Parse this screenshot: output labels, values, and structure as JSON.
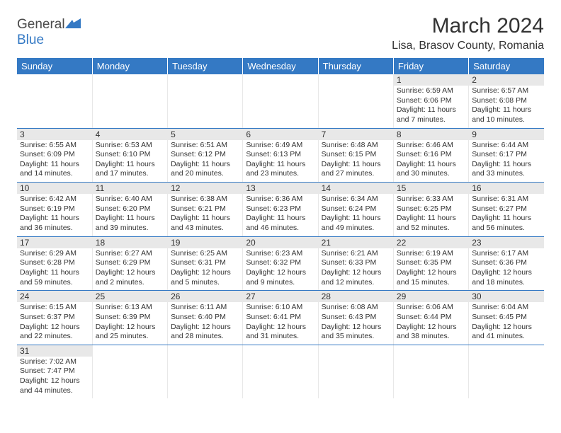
{
  "logo": {
    "text1": "General",
    "text2": "Blue"
  },
  "title": "March 2024",
  "location": "Lisa, Brasov County, Romania",
  "header_bg": "#3479c4",
  "header_fg": "#ffffff",
  "border_color": "#3479c4",
  "daynum_bg": "#e8e8e8",
  "days": [
    "Sunday",
    "Monday",
    "Tuesday",
    "Wednesday",
    "Thursday",
    "Friday",
    "Saturday"
  ],
  "weeks": [
    [
      null,
      null,
      null,
      null,
      null,
      {
        "n": "1",
        "sr": "6:59 AM",
        "ss": "6:06 PM",
        "dl": "11 hours and 7 minutes."
      },
      {
        "n": "2",
        "sr": "6:57 AM",
        "ss": "6:08 PM",
        "dl": "11 hours and 10 minutes."
      }
    ],
    [
      {
        "n": "3",
        "sr": "6:55 AM",
        "ss": "6:09 PM",
        "dl": "11 hours and 14 minutes."
      },
      {
        "n": "4",
        "sr": "6:53 AM",
        "ss": "6:10 PM",
        "dl": "11 hours and 17 minutes."
      },
      {
        "n": "5",
        "sr": "6:51 AM",
        "ss": "6:12 PM",
        "dl": "11 hours and 20 minutes."
      },
      {
        "n": "6",
        "sr": "6:49 AM",
        "ss": "6:13 PM",
        "dl": "11 hours and 23 minutes."
      },
      {
        "n": "7",
        "sr": "6:48 AM",
        "ss": "6:15 PM",
        "dl": "11 hours and 27 minutes."
      },
      {
        "n": "8",
        "sr": "6:46 AM",
        "ss": "6:16 PM",
        "dl": "11 hours and 30 minutes."
      },
      {
        "n": "9",
        "sr": "6:44 AM",
        "ss": "6:17 PM",
        "dl": "11 hours and 33 minutes."
      }
    ],
    [
      {
        "n": "10",
        "sr": "6:42 AM",
        "ss": "6:19 PM",
        "dl": "11 hours and 36 minutes."
      },
      {
        "n": "11",
        "sr": "6:40 AM",
        "ss": "6:20 PM",
        "dl": "11 hours and 39 minutes."
      },
      {
        "n": "12",
        "sr": "6:38 AM",
        "ss": "6:21 PM",
        "dl": "11 hours and 43 minutes."
      },
      {
        "n": "13",
        "sr": "6:36 AM",
        "ss": "6:23 PM",
        "dl": "11 hours and 46 minutes."
      },
      {
        "n": "14",
        "sr": "6:34 AM",
        "ss": "6:24 PM",
        "dl": "11 hours and 49 minutes."
      },
      {
        "n": "15",
        "sr": "6:33 AM",
        "ss": "6:25 PM",
        "dl": "11 hours and 52 minutes."
      },
      {
        "n": "16",
        "sr": "6:31 AM",
        "ss": "6:27 PM",
        "dl": "11 hours and 56 minutes."
      }
    ],
    [
      {
        "n": "17",
        "sr": "6:29 AM",
        "ss": "6:28 PM",
        "dl": "11 hours and 59 minutes."
      },
      {
        "n": "18",
        "sr": "6:27 AM",
        "ss": "6:29 PM",
        "dl": "12 hours and 2 minutes."
      },
      {
        "n": "19",
        "sr": "6:25 AM",
        "ss": "6:31 PM",
        "dl": "12 hours and 5 minutes."
      },
      {
        "n": "20",
        "sr": "6:23 AM",
        "ss": "6:32 PM",
        "dl": "12 hours and 9 minutes."
      },
      {
        "n": "21",
        "sr": "6:21 AM",
        "ss": "6:33 PM",
        "dl": "12 hours and 12 minutes."
      },
      {
        "n": "22",
        "sr": "6:19 AM",
        "ss": "6:35 PM",
        "dl": "12 hours and 15 minutes."
      },
      {
        "n": "23",
        "sr": "6:17 AM",
        "ss": "6:36 PM",
        "dl": "12 hours and 18 minutes."
      }
    ],
    [
      {
        "n": "24",
        "sr": "6:15 AM",
        "ss": "6:37 PM",
        "dl": "12 hours and 22 minutes."
      },
      {
        "n": "25",
        "sr": "6:13 AM",
        "ss": "6:39 PM",
        "dl": "12 hours and 25 minutes."
      },
      {
        "n": "26",
        "sr": "6:11 AM",
        "ss": "6:40 PM",
        "dl": "12 hours and 28 minutes."
      },
      {
        "n": "27",
        "sr": "6:10 AM",
        "ss": "6:41 PM",
        "dl": "12 hours and 31 minutes."
      },
      {
        "n": "28",
        "sr": "6:08 AM",
        "ss": "6:43 PM",
        "dl": "12 hours and 35 minutes."
      },
      {
        "n": "29",
        "sr": "6:06 AM",
        "ss": "6:44 PM",
        "dl": "12 hours and 38 minutes."
      },
      {
        "n": "30",
        "sr": "6:04 AM",
        "ss": "6:45 PM",
        "dl": "12 hours and 41 minutes."
      }
    ],
    [
      {
        "n": "31",
        "sr": "7:02 AM",
        "ss": "7:47 PM",
        "dl": "12 hours and 44 minutes."
      },
      null,
      null,
      null,
      null,
      null,
      null
    ]
  ],
  "labels": {
    "sunrise": "Sunrise:",
    "sunset": "Sunset:",
    "daylight": "Daylight:"
  }
}
